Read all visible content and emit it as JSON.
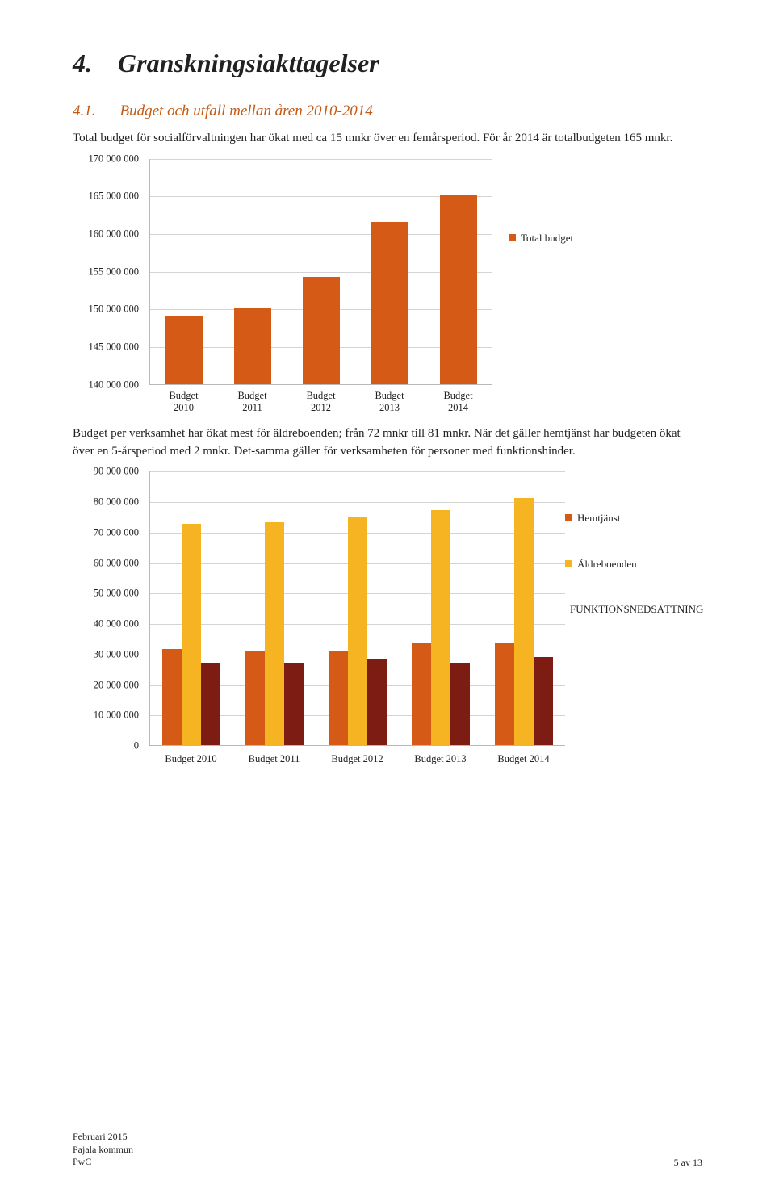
{
  "heading_num": "4.",
  "heading_title": "Granskningsiakttagelser",
  "sub_num": "4.1.",
  "sub_title": "Budget och utfall mellan åren 2010-2014",
  "para1": "Total budget för socialförvaltningen har ökat med ca 15 mnkr över en femårsperiod. För år 2014 är totalbudgeten 165 mnkr.",
  "para2a": "Budget per verksamhet har ökat mest för äldreboenden; från 72 mnkr till 81 mnkr. När det gäller hemtjänst har budgeten ökat över en 5-årsperiod med 2 mnkr. Det-samma gäller för verksamheten för personer med funktionshinder.",
  "chart1": {
    "ylim": [
      140000000,
      170000000
    ],
    "ytick_step": 5000000,
    "yticks": [
      "170 000 000",
      "165 000 000",
      "160 000 000",
      "155 000 000",
      "150 000 000",
      "145 000 000",
      "140 000 000"
    ],
    "categories": [
      "Budget 2010",
      "Budget 2011",
      "Budget 2012",
      "Budget 2013",
      "Budget 2014"
    ],
    "values": [
      149000000,
      150000000,
      154200000,
      161500000,
      165200000
    ],
    "bar_color": "#d55a16",
    "grid_color": "#d4d4d4",
    "legend_label": "Total budget",
    "label_fontsize": 12.5
  },
  "chart2": {
    "ylim": [
      0,
      90000000
    ],
    "ytick_step": 10000000,
    "yticks": [
      "90 000 000",
      "80 000 000",
      "70 000 000",
      "60 000 000",
      "50 000 000",
      "40 000 000",
      "30 000 000",
      "20 000 000",
      "10 000 000",
      "0"
    ],
    "categories": [
      "Budget 2010",
      "Budget 2011",
      "Budget 2012",
      "Budget 2013",
      "Budget 2014"
    ],
    "series": [
      {
        "name": "Hemtjänst",
        "color": "#d55a16",
        "values": [
          31500000,
          31000000,
          31000000,
          33500000,
          33500000
        ]
      },
      {
        "name": "Äldreboenden",
        "color": "#f6b322",
        "values": [
          72500000,
          73000000,
          75000000,
          77000000,
          81000000
        ]
      },
      {
        "name": "FUNKTIONSNEDSÄTTNING",
        "color": "#7d1c12",
        "values": [
          27000000,
          27000000,
          28000000,
          27000000,
          29000000
        ]
      }
    ],
    "grid_color": "#d4d4d4",
    "label_fontsize": 12.5
  },
  "footer": {
    "line1": "Februari 2015",
    "line2": "Pajala kommun",
    "line3": "PwC",
    "page": "5 av 13"
  }
}
